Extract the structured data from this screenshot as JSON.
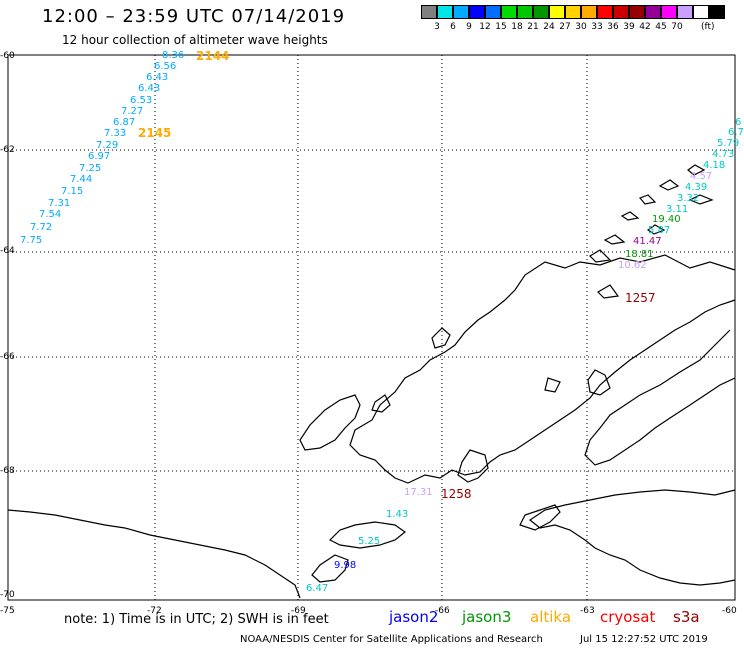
{
  "header": {
    "title": "12:00 – 23:59 UTC 07/14/2019",
    "subtitle": "12 hour collection of altimeter wave heights"
  },
  "legend": {
    "colors": [
      "#808080",
      "#00e6e6",
      "#00aaff",
      "#0000ff",
      "#006eff",
      "#00dc00",
      "#00c800",
      "#009600",
      "#ffff00",
      "#ffd200",
      "#ffaa00",
      "#ff0000",
      "#c80000",
      "#960000",
      "#960096",
      "#ff00ff",
      "#c8a0ff",
      "#ffffff",
      "#000000"
    ],
    "labels": [
      "3",
      "6",
      "9",
      "12",
      "15",
      "18",
      "21",
      "24",
      "27",
      "30",
      "33",
      "36",
      "39",
      "42",
      "45",
      "70"
    ],
    "unit": "(ft)"
  },
  "axes": {
    "y_labels": [
      "-60",
      "-62",
      "-64",
      "-66",
      "-68",
      "-70"
    ],
    "x_labels": [
      "-75",
      "-72",
      "-69",
      "-66",
      "-63",
      "-60"
    ]
  },
  "observations": {
    "track1": [
      "8.36",
      "6.56",
      "6.43",
      "6.43",
      "6.53",
      "7.27",
      "6.87",
      "7.33",
      "7.29",
      "6.97",
      "7.25",
      "7.44",
      "7.15",
      "7.31",
      "7.54",
      "7.72",
      "7.75"
    ],
    "track1_times": [
      "2144",
      "2145"
    ],
    "track2": [
      "6",
      "6.7",
      "5.79",
      "4.73",
      "4.18",
      "4.57",
      "4.39",
      "3.32",
      "3.11",
      "19.40",
      "5.87",
      "41.47",
      "18.81",
      "10.62"
    ],
    "track3": [
      "17.31",
      "1.43",
      "5.25",
      "9.98",
      "6.47"
    ],
    "track_times": [
      "1257",
      "1258"
    ]
  },
  "footer": {
    "note": "note: 1) Time is in UTC; 2) SWH is in feet",
    "satellites": [
      {
        "name": "jason2",
        "color": "#0000ff"
      },
      {
        "name": "jason3",
        "color": "#009600"
      },
      {
        "name": "altika",
        "color": "#ffaa00"
      },
      {
        "name": "cryosat",
        "color": "#ff0000"
      },
      {
        "name": "s3a",
        "color": "#960000"
      }
    ],
    "credit": "NOAA/NESDIS Center for Satellite Applications and Research",
    "timestamp": "Jul 15 12:27:52 UTC 2019"
  },
  "colors": {
    "track1": "#00aaff",
    "track_time_orange": "#ffaa00",
    "track_time_dark": "#960000",
    "pink": "#c8a0ff",
    "purple": "#960096",
    "green": "#009600",
    "cyan": "#00c8c8",
    "blue": "#0000ff"
  }
}
